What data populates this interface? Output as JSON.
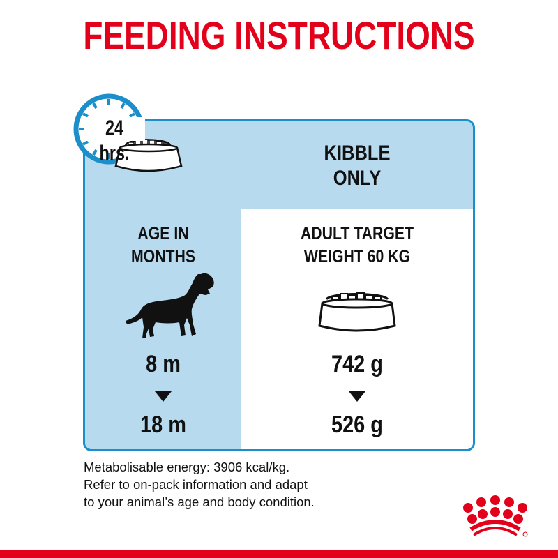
{
  "title": "FEEDING INSTRUCTIONS",
  "clock": {
    "label": "24 hrs.",
    "icon": "clock-icon"
  },
  "kibble_header": [
    "KIBBLE",
    "ONLY"
  ],
  "age_column": {
    "header": [
      "AGE IN",
      "MONTHS"
    ],
    "from": "8 m",
    "to": "18 m",
    "icon": "dog-icon"
  },
  "amount_column": {
    "header": [
      "ADULT TARGET",
      "WEIGHT 60 KG"
    ],
    "from": "742 g",
    "to": "526 g",
    "icon": "kibble-bowl-icon"
  },
  "notes": [
    "Metabolisable energy: 3906 kcal/kg.",
    "Refer to on-pack information and adapt",
    "to your animal’s age and body condition."
  ],
  "logo": "Royal Canin crown",
  "colors": {
    "brand_red": "#e2001a",
    "panel_blue": "#b7daef",
    "border_blue": "#1a8fcc"
  }
}
